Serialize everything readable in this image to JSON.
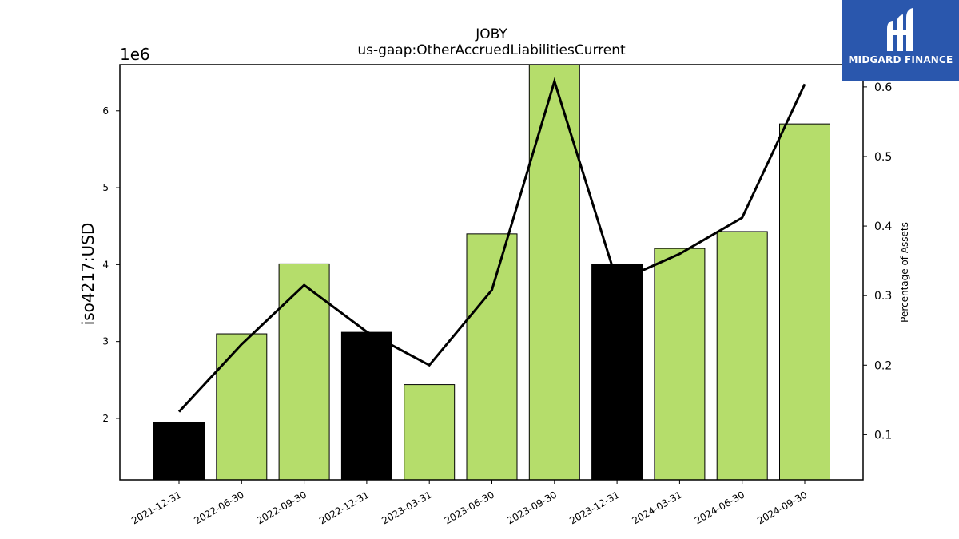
{
  "chart_data": {
    "type": "bar",
    "title": "JOBY",
    "subtitle": "us-gaap:OtherAccruedLiabilitiesCurrent",
    "ylabel": "iso4217:USD",
    "y_offset_label": "1e6",
    "y2label": "Percentage of Assets",
    "categories": [
      "2021-12-31",
      "2022-06-30",
      "2022-09-30",
      "2022-12-31",
      "2023-03-31",
      "2023-06-30",
      "2023-09-30",
      "2023-12-31",
      "2024-03-31",
      "2024-06-30",
      "2024-09-30"
    ],
    "values": [
      1950000,
      3100000,
      4010000,
      3120000,
      2440000,
      4400000,
      6600000,
      4000000,
      4210000,
      4430000,
      5830000
    ],
    "bar_fill": [
      "#000000",
      "#b5dd6b",
      "#b5dd6b",
      "#000000",
      "#b5dd6b",
      "#b5dd6b",
      "#b5dd6b",
      "#000000",
      "#b5dd6b",
      "#b5dd6b",
      "#b5dd6b"
    ],
    "line_series": {
      "name": "Percentage of Assets",
      "values": [
        0.133,
        0.23,
        0.315,
        0.248,
        0.2,
        0.308,
        0.608,
        0.32,
        0.36,
        0.412,
        0.604
      ]
    },
    "ylim": [
      1200000,
      6600000
    ],
    "y2lim": [
      0.035,
      0.632
    ],
    "yticks": [
      2,
      3,
      4,
      5,
      6
    ],
    "y2ticks": [
      "0.1",
      "0.2",
      "0.3",
      "0.4",
      "0.5",
      "0.6"
    ],
    "colors": {
      "accent": "#b5dd6b",
      "highlight": "#000000",
      "line": "#000000"
    }
  },
  "logo": {
    "text": "MIDGARD FINANCE",
    "color": "#2a57ad"
  }
}
